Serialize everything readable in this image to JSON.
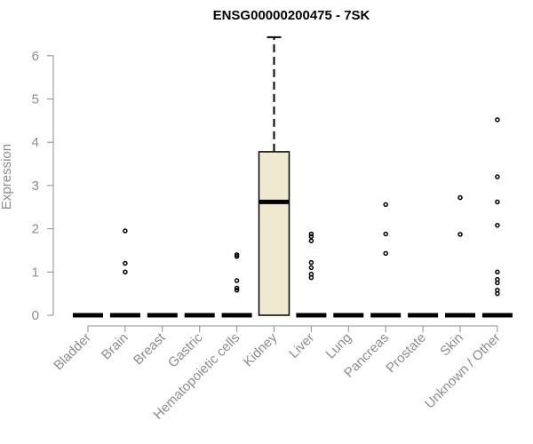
{
  "chart_data": {
    "type": "box",
    "title": "ENSG00000200475 - 7SK",
    "xlabel": "",
    "ylabel": "Expression",
    "ylim": [
      0,
      6.5
    ],
    "yticks": [
      0,
      1,
      2,
      3,
      4,
      5,
      6
    ],
    "grid": false,
    "legend": "none",
    "box_fill": "#efe9d0",
    "categories": [
      "Bladder",
      "Brain",
      "Breast",
      "Gastric",
      "Hematopoietic cells",
      "Kidney",
      "Liver",
      "Lung",
      "Pancreas",
      "Prostate",
      "Skin",
      "Unknown / Other"
    ],
    "boxes": [
      {
        "category": "Bladder",
        "min": 0,
        "q1": 0,
        "median": 0,
        "q3": 0,
        "max": 0,
        "outliers": []
      },
      {
        "category": "Brain",
        "min": 0,
        "q1": 0,
        "median": 0,
        "q3": 0,
        "max": 0,
        "outliers": [
          1.0,
          1.2,
          1.95
        ]
      },
      {
        "category": "Breast",
        "min": 0,
        "q1": 0,
        "median": 0,
        "q3": 0,
        "max": 0,
        "outliers": []
      },
      {
        "category": "Gastric",
        "min": 0,
        "q1": 0,
        "median": 0,
        "q3": 0,
        "max": 0,
        "outliers": []
      },
      {
        "category": "Hematopoietic cells",
        "min": 0,
        "q1": 0,
        "median": 0,
        "q3": 0,
        "max": 0,
        "outliers": [
          0.58,
          0.63,
          0.8,
          1.36,
          1.4
        ]
      },
      {
        "category": "Kidney",
        "min": 0,
        "q1": 0,
        "median": 2.62,
        "q3": 3.78,
        "max": 6.43,
        "outliers": []
      },
      {
        "category": "Liver",
        "min": 0,
        "q1": 0,
        "median": 0,
        "q3": 0,
        "max": 0,
        "outliers": [
          0.87,
          0.95,
          1.1,
          1.22,
          1.72,
          1.82,
          1.88
        ]
      },
      {
        "category": "Lung",
        "min": 0,
        "q1": 0,
        "median": 0,
        "q3": 0,
        "max": 0,
        "outliers": []
      },
      {
        "category": "Pancreas",
        "min": 0,
        "q1": 0,
        "median": 0,
        "q3": 0,
        "max": 0,
        "outliers": [
          1.43,
          1.88,
          2.56
        ]
      },
      {
        "category": "Prostate",
        "min": 0,
        "q1": 0,
        "median": 0,
        "q3": 0,
        "max": 0,
        "outliers": []
      },
      {
        "category": "Skin",
        "min": 0,
        "q1": 0,
        "median": 0,
        "q3": 0,
        "max": 0,
        "outliers": [
          1.87,
          2.72
        ]
      },
      {
        "category": "Unknown / Other",
        "min": 0,
        "q1": 0,
        "median": 0,
        "q3": 0,
        "max": 0,
        "outliers": [
          0.5,
          0.58,
          0.75,
          0.83,
          1.0,
          2.08,
          2.62,
          3.2,
          4.52
        ]
      }
    ]
  }
}
